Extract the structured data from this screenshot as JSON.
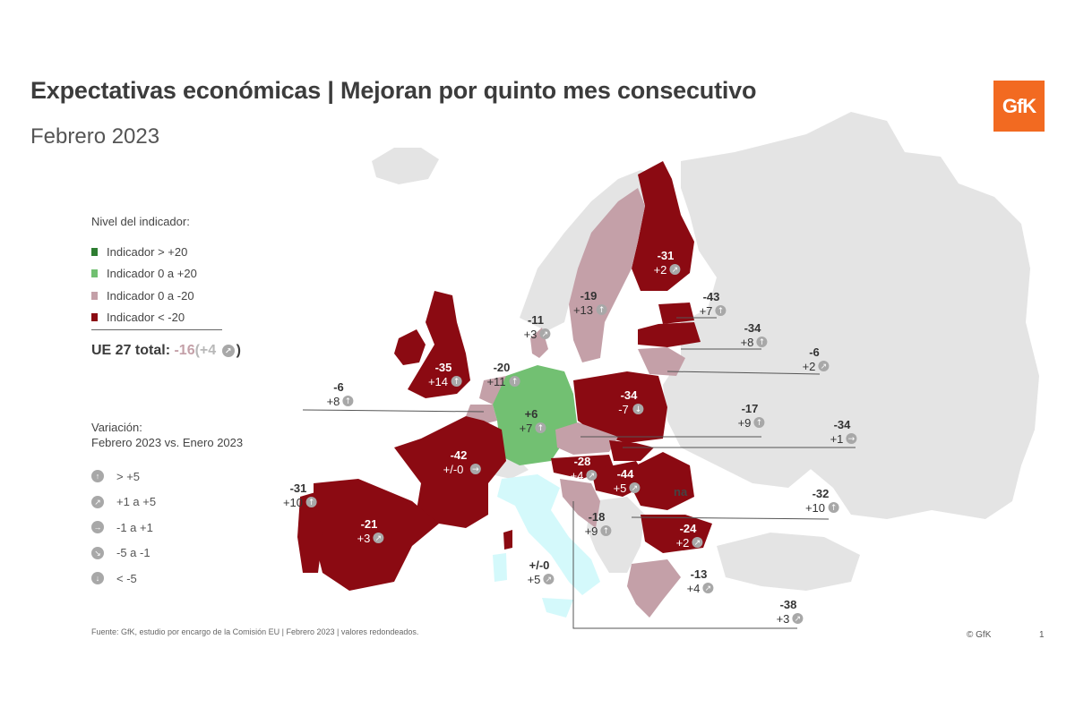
{
  "header": {
    "title": "Expectativas económicas | Mejoran por quinto mes consecutivo",
    "subtitle": "Febrero 2023",
    "logo_text": "GfK"
  },
  "colors": {
    "above_20": "#2e7d32",
    "zero_to_20": "#72c072",
    "zero_to_minus20": "#c4a0a8",
    "below_minus20": "#8b0a12",
    "non_eu": "#e4e4e4",
    "italy": "#d4f9fb",
    "label_dark": "#333333",
    "label_light": "#ffffff",
    "icon_bg": "#a8a8a8"
  },
  "legend": {
    "title": "Nivel del indicador:",
    "items": [
      {
        "label": "Indicador > +20",
        "color": "#2e7d32"
      },
      {
        "label": "Indicador 0 a +20",
        "color": "#72c072"
      },
      {
        "label": "Indicador 0 a -20",
        "color": "#c4a0a8"
      },
      {
        "label": "Indicador < -20",
        "color": "#8b0a12"
      }
    ]
  },
  "eu_total": {
    "label": "UE 27 total:",
    "value": "-16",
    "change": "+4",
    "open": "(",
    "close": ")",
    "icon": "arrow-up-right-icon"
  },
  "variation": {
    "title_line1": "Variación:",
    "title_line2": "Febrero 2023 vs. Enero 2023",
    "items": [
      {
        "label": "> +5",
        "icon": "arrow-up-icon",
        "glyph": "↑"
      },
      {
        "label": "+1 a +5",
        "icon": "arrow-up-right-icon",
        "glyph": "↗"
      },
      {
        "label": "-1 a +1",
        "icon": "arrow-right-icon",
        "glyph": "→"
      },
      {
        "label": "-5 a -1",
        "icon": "arrow-down-right-icon",
        "glyph": "↘"
      },
      {
        "label": "< -5",
        "icon": "arrow-down-icon",
        "glyph": "↓"
      }
    ]
  },
  "countries": [
    {
      "id": "finland",
      "value": "-31",
      "change": "+2",
      "icon": "↗",
      "dark": false
    },
    {
      "id": "sweden",
      "value": "-19",
      "change": "+13",
      "icon": "↑",
      "dark": true
    },
    {
      "id": "denmark",
      "value": "-11",
      "change": "+3",
      "icon": "↗",
      "dark": true
    },
    {
      "id": "estonia",
      "value": "-43",
      "change": "+7",
      "icon": "↑",
      "dark": true
    },
    {
      "id": "latvia",
      "value": "-34",
      "change": "+8",
      "icon": "↑",
      "dark": true
    },
    {
      "id": "lithuania",
      "value": "-6",
      "change": "+2",
      "icon": "↗",
      "dark": true
    },
    {
      "id": "ireland",
      "value": "-35",
      "change": "+14",
      "icon": "↑",
      "dark": false
    },
    {
      "id": "netherlands",
      "value": "-20",
      "change": "+11",
      "icon": "↑",
      "dark": true
    },
    {
      "id": "belgium",
      "value": "-6",
      "change": "+8",
      "icon": "↑",
      "dark": true
    },
    {
      "id": "germany",
      "value": "+6",
      "change": "+7",
      "icon": "↑",
      "dark": true
    },
    {
      "id": "poland",
      "value": "-34",
      "change": "-7",
      "icon": "↓",
      "dark": false
    },
    {
      "id": "czechia",
      "value": "-17",
      "change": "+9",
      "icon": "↑",
      "dark": true
    },
    {
      "id": "slovakia",
      "value": "-34",
      "change": "+1",
      "icon": "→",
      "dark": true
    },
    {
      "id": "france",
      "value": "-42",
      "change": "+/-0",
      "icon": "→",
      "dark": false
    },
    {
      "id": "austria",
      "value": "-28",
      "change": "+4",
      "icon": "↗",
      "dark": false
    },
    {
      "id": "hungary",
      "value": "-44",
      "change": "+5",
      "icon": "↗",
      "dark": false
    },
    {
      "id": "romania",
      "value": "-32",
      "change": "+10",
      "icon": "↑",
      "dark": true
    },
    {
      "id": "portugal",
      "value": "-31",
      "change": "+10",
      "icon": "↑",
      "dark": true
    },
    {
      "id": "spain",
      "value": "-21",
      "change": "+3",
      "icon": "↗",
      "dark": false
    },
    {
      "id": "croatia",
      "value": "-18",
      "change": "+9",
      "icon": "↑",
      "dark": true
    },
    {
      "id": "bulgaria",
      "value": "-24",
      "change": "+2",
      "icon": "↗",
      "dark": false
    },
    {
      "id": "italy",
      "value": "+/-0",
      "change": "+5",
      "icon": "↗",
      "dark": true
    },
    {
      "id": "greece",
      "value": "-13",
      "change": "+4",
      "icon": "↗",
      "dark": true
    },
    {
      "id": "cyprus",
      "value": "-38",
      "change": "+3",
      "icon": "↗",
      "dark": true
    }
  ],
  "non_eu_label": "na",
  "footer": {
    "source": "Fuente: GfK, estudio por encargo de la Comisión EU | Febrero 2023 | valores redondeados.",
    "copyright": "© GfK",
    "page_number": "1"
  }
}
